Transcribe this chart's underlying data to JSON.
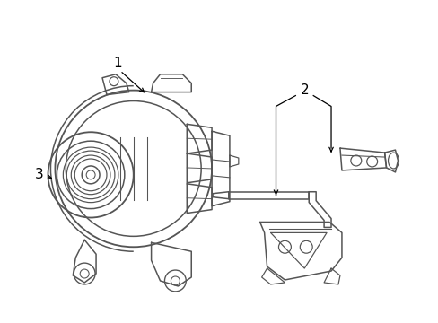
{
  "bg_color": "#ffffff",
  "line_color": "#555555",
  "line_width": 1.1,
  "label_1": "1",
  "label_2": "2",
  "label_3": "3",
  "figsize": [
    4.89,
    3.6
  ],
  "dpi": 100
}
